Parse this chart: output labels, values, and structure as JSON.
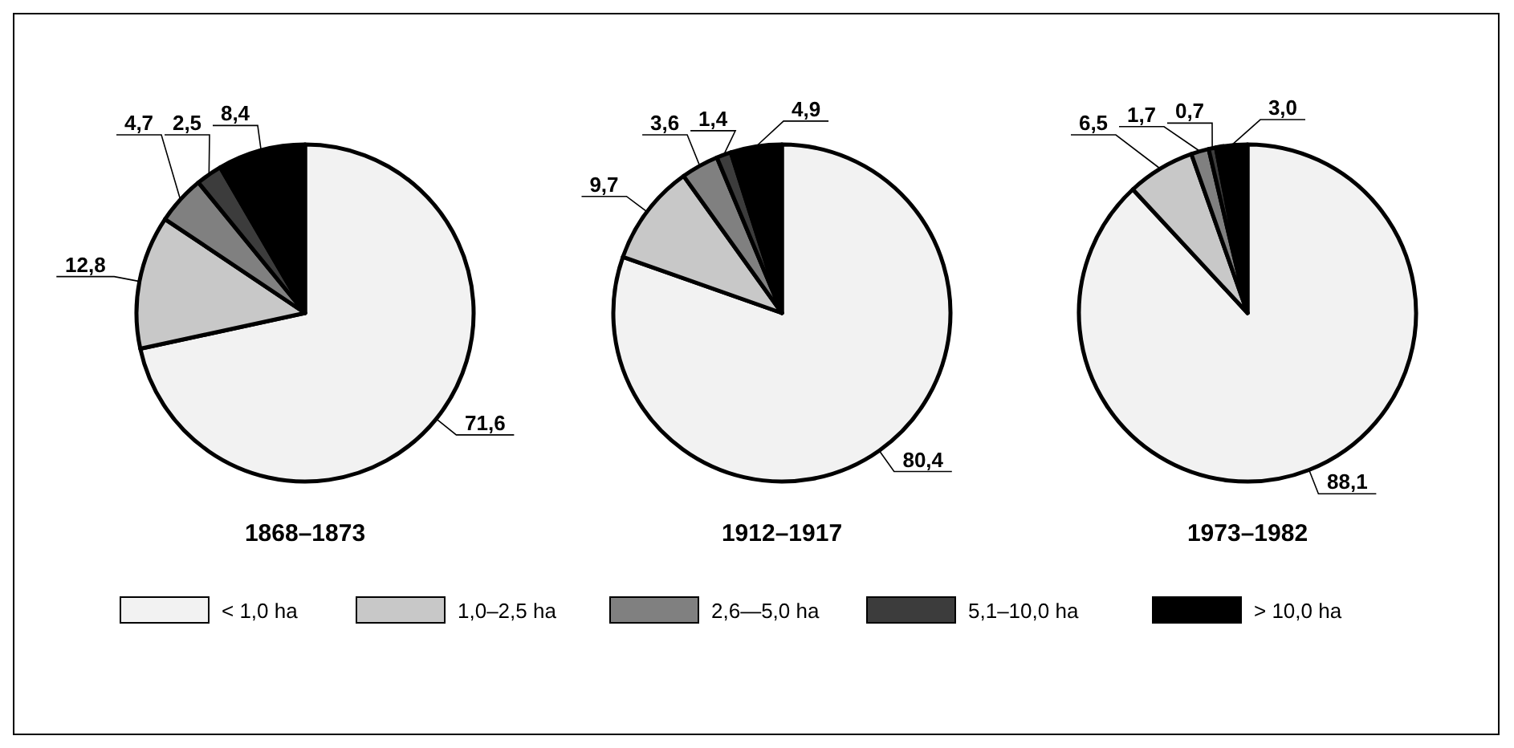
{
  "chart_data": [
    {
      "type": "pie",
      "title": "1868–1873",
      "categories": [
        "< 1,0 ha",
        "1,0–2,5 ha",
        "2,6—5,0 ha",
        "5,1–10,0 ha",
        "> 10,0 ha"
      ],
      "values": [
        71.6,
        12.8,
        4.7,
        2.5,
        8.4
      ],
      "value_labels": [
        "71,6",
        "12,8",
        "4,7",
        "2,5",
        "8,4"
      ],
      "colors": [
        "#f2f2f2",
        "#c8c8c8",
        "#808080",
        "#3c3c3c",
        "#000000"
      ],
      "legend": "bottom"
    },
    {
      "type": "pie",
      "title": "1912–1917",
      "values": [
        80.4,
        9.7,
        3.6,
        1.4,
        4.9
      ],
      "value_labels": [
        "80,4",
        "9,7",
        "3,6",
        "1,4",
        "4,9"
      ],
      "colors": [
        "#f2f2f2",
        "#c8c8c8",
        "#808080",
        "#3c3c3c",
        "#000000"
      ]
    },
    {
      "type": "pie",
      "title": "1973–1982",
      "values": [
        88.1,
        6.5,
        1.7,
        0.7,
        3.0
      ],
      "value_labels": [
        "88,1",
        "6,5",
        "1,7",
        "0,7",
        "3,0"
      ],
      "colors": [
        "#f2f2f2",
        "#c8c8c8",
        "#808080",
        "#3c3c3c",
        "#000000"
      ]
    }
  ]
}
